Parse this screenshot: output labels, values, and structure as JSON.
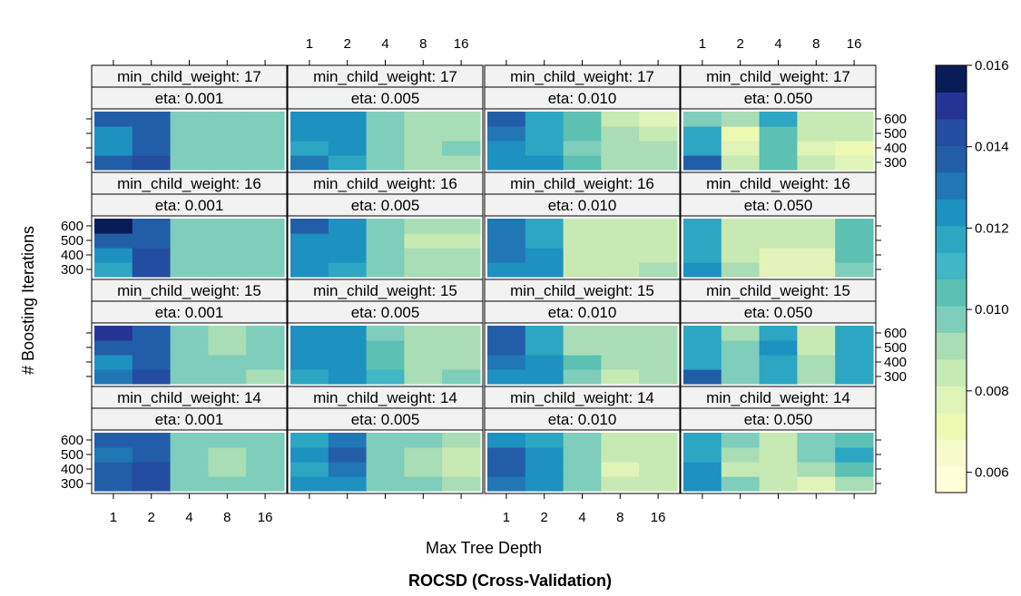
{
  "chart_data": {
    "type": "heatmap",
    "title": "ROCSD (Cross-Validation)",
    "xlabel": "Max Tree Depth",
    "ylabel": "# Boosting Iterations",
    "x_ticks": [
      "1",
      "2",
      "4",
      "8",
      "16"
    ],
    "y_ticks": [
      "300",
      "400",
      "500",
      "600"
    ],
    "strip_labels": {
      "min_child_weight": [
        "min_child_weight: 17",
        "min_child_weight: 16",
        "min_child_weight: 15",
        "min_child_weight: 14"
      ],
      "eta": [
        "eta: 0.001",
        "eta: 0.005",
        "eta: 0.010",
        "eta: 0.050"
      ]
    },
    "colorbar": {
      "ticks": [
        "0.016",
        "0.014",
        "0.012",
        "0.010",
        "0.008",
        "0.006"
      ],
      "tick_values": [
        0.016,
        0.014,
        0.012,
        0.01,
        0.008,
        0.006
      ],
      "range": [
        0.0055,
        0.016
      ],
      "colors": [
        "#ffffd9",
        "#f6fbce",
        "#edf8b1",
        "#e0f3b8",
        "#c7e9b4",
        "#a8ddb5",
        "#7fcdbb",
        "#5cc0b3",
        "#41b6c4",
        "#2ca6c2",
        "#1d91c0",
        "#2077b4",
        "#225ea8",
        "#234da0",
        "#253494",
        "#081d58"
      ]
    },
    "panels": [
      {
        "row": 0,
        "col": 0,
        "min_child_weight": 17,
        "eta": 0.001,
        "values": [
          [
            0.0135,
            0.0145,
            0.01,
            0.01,
            0.01
          ],
          [
            0.0125,
            0.014,
            0.01,
            0.01,
            0.01
          ],
          [
            0.0125,
            0.0135,
            0.01,
            0.01,
            0.0095
          ],
          [
            0.014,
            0.0135,
            0.01,
            0.01,
            0.0095
          ]
        ]
      },
      {
        "row": 0,
        "col": 1,
        "min_child_weight": 17,
        "eta": 0.005,
        "values": [
          [
            0.013,
            0.012,
            0.0095,
            0.009,
            0.009
          ],
          [
            0.0115,
            0.0125,
            0.0095,
            0.009,
            0.0095
          ],
          [
            0.0125,
            0.0125,
            0.0095,
            0.009,
            0.009
          ],
          [
            0.0125,
            0.0125,
            0.0095,
            0.009,
            0.009
          ]
        ]
      },
      {
        "row": 0,
        "col": 2,
        "min_child_weight": 17,
        "eta": 0.01,
        "values": [
          [
            0.0125,
            0.0125,
            0.0105,
            0.009,
            0.009
          ],
          [
            0.0125,
            0.012,
            0.0095,
            0.009,
            0.009
          ],
          [
            0.013,
            0.0115,
            0.0105,
            0.009,
            0.0085
          ],
          [
            0.0135,
            0.0115,
            0.0105,
            0.0085,
            0.008
          ]
        ]
      },
      {
        "row": 0,
        "col": 3,
        "min_child_weight": 17,
        "eta": 0.05,
        "values": [
          [
            0.0135,
            0.0085,
            0.0105,
            0.0085,
            0.0075
          ],
          [
            0.0115,
            0.008,
            0.0105,
            0.0075,
            0.007
          ],
          [
            0.012,
            0.007,
            0.0105,
            0.0085,
            0.0085
          ],
          [
            0.01,
            0.009,
            0.0115,
            0.0085,
            0.0085
          ]
        ]
      },
      {
        "row": 1,
        "col": 0,
        "min_child_weight": 16,
        "eta": 0.001,
        "values": [
          [
            0.012,
            0.0145,
            0.01,
            0.01,
            0.01
          ],
          [
            0.0125,
            0.0145,
            0.01,
            0.01,
            0.01
          ],
          [
            0.014,
            0.0135,
            0.01,
            0.01,
            0.01
          ],
          [
            0.016,
            0.0135,
            0.01,
            0.01,
            0.01
          ]
        ]
      },
      {
        "row": 1,
        "col": 1,
        "min_child_weight": 16,
        "eta": 0.005,
        "values": [
          [
            0.0125,
            0.012,
            0.01,
            0.009,
            0.009
          ],
          [
            0.0125,
            0.0125,
            0.01,
            0.009,
            0.009
          ],
          [
            0.0125,
            0.0125,
            0.01,
            0.0085,
            0.0085
          ],
          [
            0.0135,
            0.0125,
            0.0095,
            0.009,
            0.009
          ]
        ]
      },
      {
        "row": 1,
        "col": 2,
        "min_child_weight": 16,
        "eta": 0.01,
        "values": [
          [
            0.0125,
            0.0125,
            0.0085,
            0.0085,
            0.009
          ],
          [
            0.013,
            0.0125,
            0.0085,
            0.0085,
            0.0085
          ],
          [
            0.013,
            0.0115,
            0.0085,
            0.0085,
            0.0085
          ],
          [
            0.013,
            0.0115,
            0.0085,
            0.0085,
            0.0085
          ]
        ]
      },
      {
        "row": 1,
        "col": 3,
        "min_child_weight": 16,
        "eta": 0.05,
        "values": [
          [
            0.0125,
            0.009,
            0.008,
            0.008,
            0.01
          ],
          [
            0.0115,
            0.0085,
            0.0075,
            0.0075,
            0.0105
          ],
          [
            0.0115,
            0.0085,
            0.0085,
            0.0085,
            0.0105
          ],
          [
            0.0115,
            0.0085,
            0.0085,
            0.0085,
            0.0105
          ]
        ]
      },
      {
        "row": 2,
        "col": 0,
        "min_child_weight": 15,
        "eta": 0.001,
        "values": [
          [
            0.013,
            0.0145,
            0.01,
            0.0095,
            0.009
          ],
          [
            0.0125,
            0.014,
            0.01,
            0.0095,
            0.01
          ],
          [
            0.014,
            0.0135,
            0.01,
            0.009,
            0.01
          ],
          [
            0.015,
            0.0135,
            0.01,
            0.009,
            0.01
          ]
        ]
      },
      {
        "row": 2,
        "col": 1,
        "min_child_weight": 15,
        "eta": 0.005,
        "values": [
          [
            0.0115,
            0.0125,
            0.011,
            0.009,
            0.0095
          ],
          [
            0.0125,
            0.0125,
            0.0105,
            0.009,
            0.009
          ],
          [
            0.0125,
            0.0125,
            0.0105,
            0.009,
            0.009
          ],
          [
            0.0125,
            0.0125,
            0.0095,
            0.009,
            0.009
          ]
        ]
      },
      {
        "row": 2,
        "col": 2,
        "min_child_weight": 15,
        "eta": 0.01,
        "values": [
          [
            0.0125,
            0.0125,
            0.0095,
            0.0085,
            0.009
          ],
          [
            0.013,
            0.0125,
            0.0105,
            0.009,
            0.009
          ],
          [
            0.0135,
            0.012,
            0.009,
            0.009,
            0.009
          ],
          [
            0.0135,
            0.0115,
            0.009,
            0.009,
            0.009
          ]
        ]
      },
      {
        "row": 2,
        "col": 3,
        "min_child_weight": 15,
        "eta": 0.05,
        "values": [
          [
            0.0135,
            0.01,
            0.0115,
            0.009,
            0.012
          ],
          [
            0.012,
            0.01,
            0.012,
            0.009,
            0.012
          ],
          [
            0.012,
            0.0095,
            0.0125,
            0.0085,
            0.0115
          ],
          [
            0.0115,
            0.009,
            0.0115,
            0.0085,
            0.0115
          ]
        ]
      },
      {
        "row": 3,
        "col": 0,
        "min_child_weight": 14,
        "eta": 0.001,
        "values": [
          [
            0.0135,
            0.0145,
            0.01,
            0.0095,
            0.01
          ],
          [
            0.0135,
            0.0145,
            0.01,
            0.009,
            0.01
          ],
          [
            0.013,
            0.0135,
            0.01,
            0.009,
            0.01
          ],
          [
            0.014,
            0.0135,
            0.01,
            0.0095,
            0.01
          ]
        ]
      },
      {
        "row": 3,
        "col": 1,
        "min_child_weight": 14,
        "eta": 0.005,
        "values": [
          [
            0.0125,
            0.0125,
            0.01,
            0.0095,
            0.009
          ],
          [
            0.012,
            0.013,
            0.01,
            0.009,
            0.0085
          ],
          [
            0.0125,
            0.0135,
            0.01,
            0.009,
            0.0085
          ],
          [
            0.012,
            0.013,
            0.01,
            0.0095,
            0.009
          ]
        ]
      },
      {
        "row": 3,
        "col": 2,
        "min_child_weight": 14,
        "eta": 0.01,
        "values": [
          [
            0.013,
            0.0125,
            0.01,
            0.0085,
            0.0085
          ],
          [
            0.0135,
            0.0125,
            0.01,
            0.008,
            0.0085
          ],
          [
            0.0135,
            0.0125,
            0.0095,
            0.0085,
            0.0085
          ],
          [
            0.0125,
            0.0115,
            0.0095,
            0.0085,
            0.0085
          ]
        ]
      },
      {
        "row": 3,
        "col": 3,
        "min_child_weight": 14,
        "eta": 0.05,
        "values": [
          [
            0.0125,
            0.01,
            0.0085,
            0.008,
            0.009
          ],
          [
            0.0125,
            0.0085,
            0.0085,
            0.009,
            0.0105
          ],
          [
            0.012,
            0.009,
            0.0085,
            0.0095,
            0.0115
          ],
          [
            0.0115,
            0.0095,
            0.0085,
            0.0095,
            0.0105
          ]
        ]
      }
    ]
  }
}
